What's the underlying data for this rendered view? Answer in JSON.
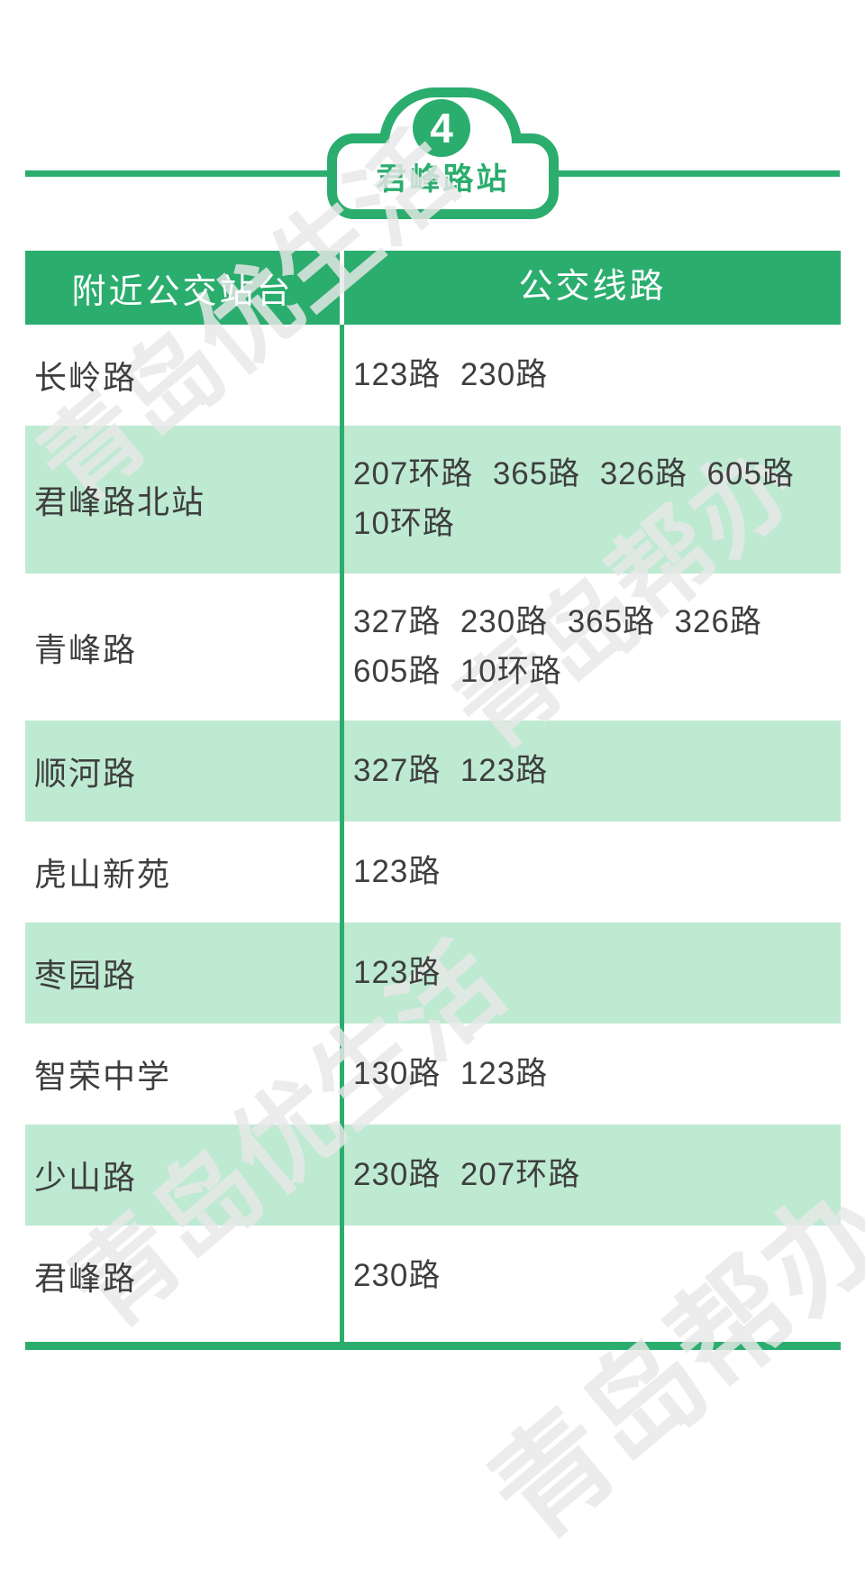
{
  "badge": {
    "number": "4",
    "title": "君峰路站"
  },
  "table": {
    "headers": [
      "附近公交站台",
      "公交线路"
    ],
    "rows": [
      {
        "station": "长岭路",
        "lines": "123路  230路"
      },
      {
        "station": "君峰路北站",
        "lines": "207环路  365路  326路  605路  10环路"
      },
      {
        "station": "青峰路",
        "lines": "327路  230路  365路  326路  605路  10环路"
      },
      {
        "station": "顺河路",
        "lines": "327路  123路"
      },
      {
        "station": "虎山新苑",
        "lines": "123路"
      },
      {
        "station": "枣园路",
        "lines": "123路"
      },
      {
        "station": "智荣中学",
        "lines": "130路  123路"
      },
      {
        "station": "少山路",
        "lines": "230路  207环路"
      },
      {
        "station": "君峰路",
        "lines": "230路"
      }
    ]
  },
  "watermarks": [
    "青岛优生活",
    "青岛帮办",
    "青岛优生活",
    "青岛帮办"
  ],
  "colors": {
    "primary": "#2BAD6E",
    "row_tint": "#BEEAD2",
    "text": "#3E3E3E",
    "watermark": "#E8E8E8"
  }
}
